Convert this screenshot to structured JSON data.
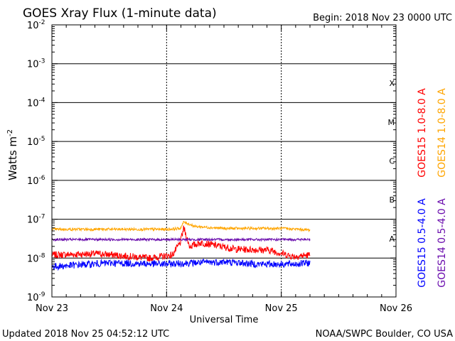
{
  "chart_data": {
    "type": "line",
    "title": "GOES Xray Flux (1-minute data)",
    "begin_label": "Begin:  2018 Nov 23 0000 UTC",
    "xlabel": "Universal Time",
    "ylabel": "Watts m",
    "ylabel_sup": "-2",
    "ylim": [
      1e-09,
      0.01
    ],
    "y_scale": "log",
    "x_ticks": [
      "Nov 23",
      "Nov 24",
      "Nov 25",
      "Nov 26"
    ],
    "x_range_days": [
      0,
      3
    ],
    "y_ticks": [
      {
        "base": "10",
        "exp": "-2"
      },
      {
        "base": "10",
        "exp": "-3"
      },
      {
        "base": "10",
        "exp": "-4"
      },
      {
        "base": "10",
        "exp": "-5"
      },
      {
        "base": "10",
        "exp": "-6"
      },
      {
        "base": "10",
        "exp": "-7"
      },
      {
        "base": "10",
        "exp": "-8"
      },
      {
        "base": "10",
        "exp": "-9"
      }
    ],
    "flare_classes": [
      {
        "label": "X",
        "value": 0.000316
      },
      {
        "label": "M",
        "value": 3.16e-05
      },
      {
        "label": "C",
        "value": 3.16e-06
      },
      {
        "label": "B",
        "value": 3.16e-07
      },
      {
        "label": "A",
        "value": 3.16e-08
      }
    ],
    "grid": true,
    "legend_position": "right",
    "series": [
      {
        "name": "GOES15 1.0-8.0 A",
        "color": "#ff0000",
        "points": [
          [
            0.0,
            1.2e-08
          ],
          [
            0.4,
            1.3e-08
          ],
          [
            0.85,
            1e-08
          ],
          [
            1.05,
            1.2e-08
          ],
          [
            1.12,
            2.5e-08
          ],
          [
            1.15,
            6e-08
          ],
          [
            1.2,
            2e-08
          ],
          [
            1.3,
            2.5e-08
          ],
          [
            1.6,
            1.7e-08
          ],
          [
            1.9,
            1.6e-08
          ],
          [
            2.1,
            1.1e-08
          ],
          [
            2.25,
            1.2e-08
          ]
        ]
      },
      {
        "name": "GOES14 1.0-8.0 A",
        "color": "#ffa500",
        "points": [
          [
            0.0,
            5.5e-08
          ],
          [
            0.5,
            5.5e-08
          ],
          [
            1.0,
            5.5e-08
          ],
          [
            1.12,
            5.8e-08
          ],
          [
            1.15,
            8.5e-08
          ],
          [
            1.25,
            6.5e-08
          ],
          [
            1.5,
            5.8e-08
          ],
          [
            2.0,
            5.8e-08
          ],
          [
            2.25,
            5.3e-08
          ]
        ]
      },
      {
        "name": "GOES15 0.5-4.0 A",
        "color": "#0000ff",
        "points": [
          [
            0.0,
            6e-09
          ],
          [
            0.5,
            7.5e-09
          ],
          [
            1.0,
            7e-09
          ],
          [
            1.2,
            7.5e-09
          ],
          [
            1.5,
            8e-09
          ],
          [
            1.8,
            7e-09
          ],
          [
            2.1,
            7e-09
          ],
          [
            2.25,
            7.5e-09
          ]
        ]
      },
      {
        "name": "GOES14 0.5-4.0 A",
        "color": "#6a0dad",
        "points": [
          [
            0.0,
            3e-08
          ],
          [
            0.5,
            3e-08
          ],
          [
            1.0,
            3e-08
          ],
          [
            1.5,
            3e-08
          ],
          [
            2.0,
            3e-08
          ],
          [
            2.25,
            3e-08
          ]
        ]
      }
    ]
  },
  "footer": {
    "updated": "Updated 2018 Nov 25 04:52:12 UTC",
    "source": "NOAA/SWPC Boulder, CO USA"
  }
}
